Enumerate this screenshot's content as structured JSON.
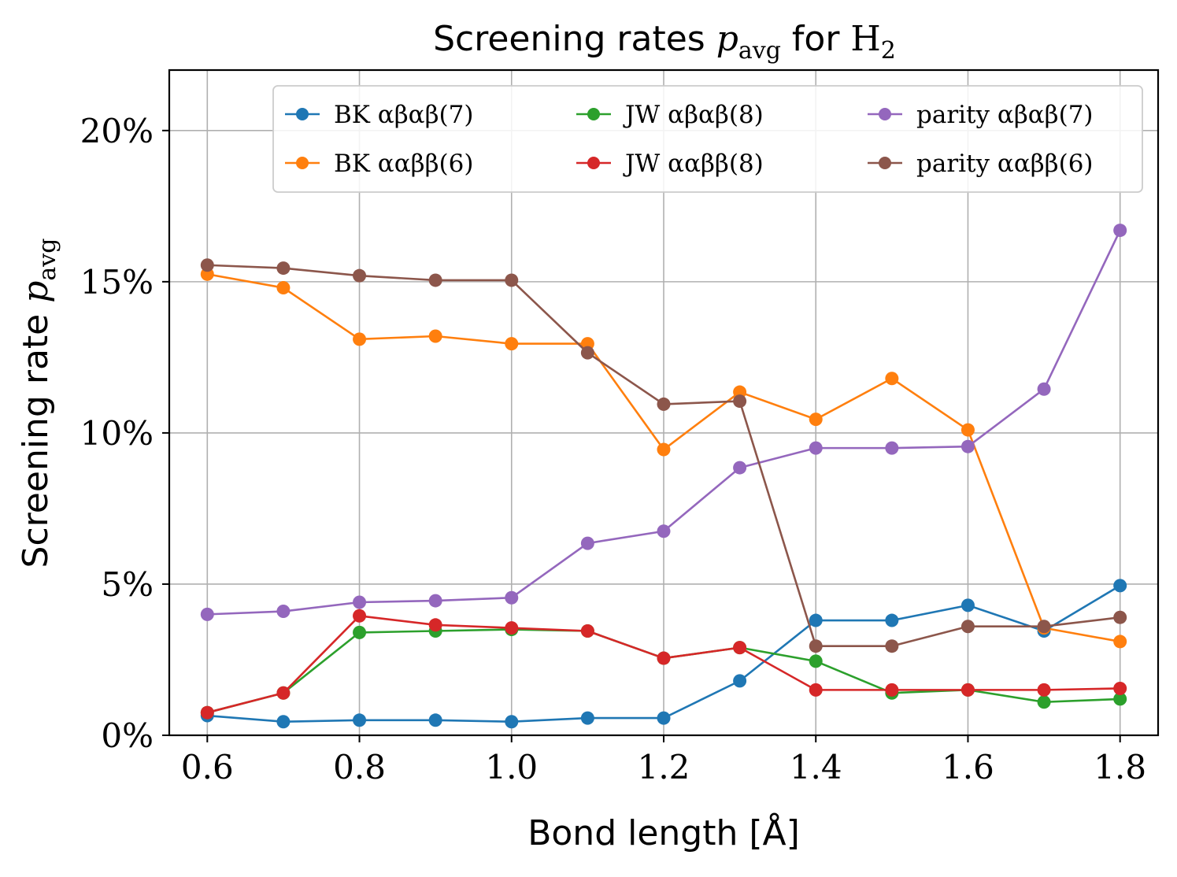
{
  "chart_data": {
    "type": "line",
    "title_parts": {
      "prefix": "Screening rates ",
      "symbol": "p",
      "subscript": "avg",
      "middle": " for ",
      "molecule": "H",
      "molecule_subscript": "2"
    },
    "xlabel": "Bond length [Å]",
    "ylabel_parts": {
      "text": "Screening rate ",
      "symbol": "p",
      "subscript": "avg"
    },
    "x": [
      0.6,
      0.7,
      0.8,
      0.9,
      1.0,
      1.1,
      1.2,
      1.3,
      1.4,
      1.5,
      1.6,
      1.7,
      1.8
    ],
    "xlim": [
      0.55,
      1.85
    ],
    "ylim": [
      0,
      22
    ],
    "x_ticks": [
      0.6,
      0.8,
      1.0,
      1.2,
      1.4,
      1.6,
      1.8
    ],
    "x_tick_labels": [
      "0.6",
      "0.8",
      "1.0",
      "1.2",
      "1.4",
      "1.6",
      "1.8"
    ],
    "y_ticks": [
      0,
      5,
      10,
      15,
      20
    ],
    "y_tick_labels": [
      "0%",
      "5%",
      "10%",
      "15%",
      "20%"
    ],
    "grid": true,
    "legend_location": "upper-right, 3 columns",
    "series": [
      {
        "name": "BK αβαβ(7)",
        "color": "#1f77b4",
        "values": [
          0.65,
          0.45,
          0.5,
          0.5,
          0.45,
          0.57,
          0.57,
          1.8,
          3.8,
          3.8,
          4.3,
          3.45,
          4.95
        ]
      },
      {
        "name": "BK ααββ(6)",
        "color": "#ff7f0e",
        "values": [
          15.25,
          14.8,
          13.1,
          13.2,
          12.95,
          12.95,
          9.45,
          11.35,
          10.45,
          11.8,
          10.1,
          3.55,
          3.1
        ]
      },
      {
        "name": "JW αβαβ(8)",
        "color": "#2ca02c",
        "values": [
          0.75,
          1.4,
          3.4,
          3.45,
          3.5,
          3.45,
          2.55,
          2.9,
          2.45,
          1.4,
          1.5,
          1.1,
          1.2
        ]
      },
      {
        "name": "JW ααββ(8)",
        "color": "#d62728",
        "values": [
          0.75,
          1.4,
          3.95,
          3.65,
          3.55,
          3.45,
          2.55,
          2.9,
          1.5,
          1.5,
          1.5,
          1.5,
          1.55
        ]
      },
      {
        "name": "parity αβαβ(7)",
        "color": "#9467bd",
        "values": [
          4.0,
          4.1,
          4.4,
          4.45,
          4.55,
          6.35,
          6.75,
          8.85,
          9.5,
          9.5,
          9.55,
          11.45,
          16.7
        ]
      },
      {
        "name": "parity ααββ(6)",
        "color": "#8c564b",
        "values": [
          15.55,
          15.45,
          15.2,
          15.05,
          15.05,
          12.65,
          10.95,
          11.05,
          2.95,
          2.95,
          3.6,
          3.6,
          3.9
        ]
      }
    ]
  }
}
